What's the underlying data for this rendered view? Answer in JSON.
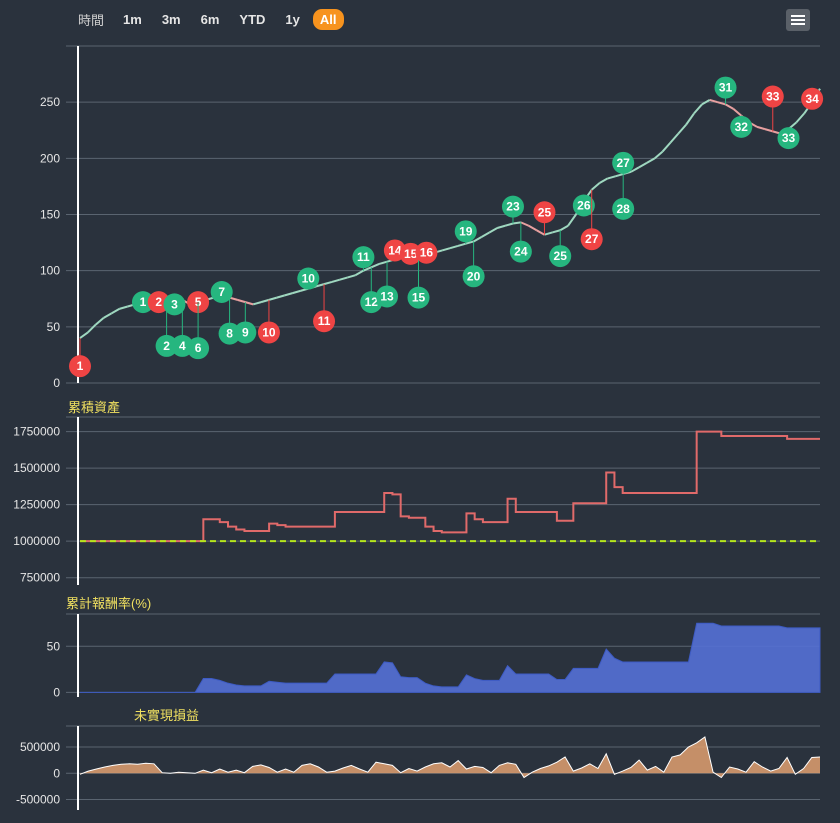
{
  "range_selector": {
    "label": "時間",
    "buttons": [
      "1m",
      "3m",
      "6m",
      "YTD",
      "1y",
      "All"
    ],
    "selected": "All"
  },
  "menu_icon": "hamburger-menu-icon",
  "colors": {
    "background": "#2a323d",
    "grid": "#5a6470",
    "buy_flag": "#26b67f",
    "sell_flag": "#ef4444",
    "equity_line": "#e06a6a",
    "baseline": "#b5e61d",
    "return_area": "#5470d6",
    "unrealized_area": "#e0a070",
    "pane_title": "#f0e060"
  },
  "chart_data": [
    {
      "type": "line",
      "pane": "price",
      "ylim": [
        0,
        300
      ],
      "yticks": [
        0,
        50,
        100,
        150,
        200,
        250
      ],
      "grid": true,
      "series": [
        {
          "values": [
            40,
            45,
            52,
            58,
            62,
            66,
            68,
            70,
            71,
            72,
            70,
            72,
            73,
            74,
            70,
            72,
            74,
            76,
            78,
            76,
            74,
            72,
            70,
            72,
            74,
            76,
            78,
            80,
            82,
            84,
            86,
            88,
            90,
            92,
            94,
            96,
            100,
            103,
            106,
            108,
            110,
            112,
            113,
            114,
            115,
            116,
            118,
            120,
            122,
            124,
            126,
            130,
            134,
            138,
            140,
            142,
            143,
            140,
            136,
            132,
            134,
            136,
            140,
            150,
            162,
            172,
            178,
            182,
            184,
            186,
            188,
            192,
            196,
            200,
            206,
            214,
            222,
            230,
            240,
            248,
            252,
            250,
            248,
            244,
            238,
            232,
            228,
            226,
            224,
            222,
            226,
            232,
            240,
            250,
            262
          ]
        }
      ]
    },
    {
      "type": "line",
      "pane": "cumulative-assets",
      "title": "累積資產",
      "ylim": [
        700000,
        1850000
      ],
      "yticks": [
        750000,
        1000000,
        1250000,
        1500000,
        1750000
      ],
      "baseline": 1000000,
      "series": [
        {
          "values": [
            1000000,
            1000000,
            1000000,
            1000000,
            1000000,
            1000000,
            1000000,
            1000000,
            1000000,
            1000000,
            1000000,
            1000000,
            1000000,
            1000000,
            1000000,
            1150000,
            1150000,
            1130000,
            1100000,
            1080000,
            1070000,
            1070000,
            1070000,
            1120000,
            1110000,
            1100000,
            1100000,
            1100000,
            1100000,
            1100000,
            1100000,
            1200000,
            1200000,
            1200000,
            1200000,
            1200000,
            1200000,
            1330000,
            1320000,
            1170000,
            1160000,
            1160000,
            1100000,
            1070000,
            1060000,
            1060000,
            1060000,
            1190000,
            1150000,
            1130000,
            1130000,
            1130000,
            1290000,
            1200000,
            1200000,
            1200000,
            1200000,
            1200000,
            1140000,
            1140000,
            1260000,
            1260000,
            1260000,
            1260000,
            1470000,
            1370000,
            1330000,
            1330000,
            1330000,
            1330000,
            1330000,
            1330000,
            1330000,
            1330000,
            1330000,
            1750000,
            1750000,
            1750000,
            1720000,
            1720000,
            1720000,
            1720000,
            1720000,
            1720000,
            1720000,
            1720000,
            1700000,
            1700000,
            1700000,
            1700000,
            1700000
          ]
        }
      ]
    },
    {
      "type": "area",
      "pane": "cumulative-return",
      "title": "累計報酬率(%)",
      "ylim": [
        -5,
        85
      ],
      "yticks": [
        0,
        50
      ],
      "series": [
        {
          "values": [
            0,
            0,
            0,
            0,
            0,
            0,
            0,
            0,
            0,
            0,
            0,
            0,
            0,
            0,
            0,
            15,
            15,
            13,
            10,
            8,
            7,
            7,
            7,
            12,
            11,
            10,
            10,
            10,
            10,
            10,
            10,
            20,
            20,
            20,
            20,
            20,
            20,
            33,
            32,
            17,
            16,
            16,
            10,
            7,
            6,
            6,
            6,
            19,
            15,
            13,
            13,
            13,
            29,
            20,
            20,
            20,
            20,
            20,
            14,
            14,
            26,
            26,
            26,
            26,
            47,
            37,
            33,
            33,
            33,
            33,
            33,
            33,
            33,
            33,
            33,
            75,
            75,
            75,
            72,
            72,
            72,
            72,
            72,
            72,
            72,
            72,
            70,
            70,
            70,
            70,
            70
          ]
        }
      ]
    },
    {
      "type": "area",
      "pane": "unrealized-pnl",
      "title": "未實現損益",
      "ylim": [
        -700000,
        900000
      ],
      "yticks": [
        -500000,
        0,
        500000
      ],
      "series": [
        {
          "values": [
            -20000,
            40000,
            80000,
            120000,
            150000,
            170000,
            180000,
            170000,
            190000,
            180000,
            10000,
            0,
            20000,
            10000,
            0,
            60000,
            10000,
            80000,
            20000,
            60000,
            10000,
            130000,
            160000,
            110000,
            20000,
            80000,
            20000,
            150000,
            180000,
            120000,
            20000,
            40000,
            100000,
            150000,
            80000,
            20000,
            210000,
            180000,
            150000,
            10000,
            90000,
            40000,
            120000,
            180000,
            200000,
            120000,
            240000,
            80000,
            130000,
            110000,
            10000,
            150000,
            200000,
            170000,
            -80000,
            20000,
            90000,
            140000,
            210000,
            310000,
            40000,
            100000,
            180000,
            90000,
            370000,
            -20000,
            40000,
            110000,
            250000,
            60000,
            130000,
            20000,
            310000,
            350000,
            500000,
            580000,
            690000,
            20000,
            -80000,
            120000,
            80000,
            20000,
            220000,
            120000,
            40000,
            90000,
            300000,
            -20000,
            90000,
            300000,
            310000
          ]
        }
      ]
    }
  ],
  "trade_flags": [
    {
      "label": "1",
      "side": "sell",
      "i": 0,
      "v": 15
    },
    {
      "label": "1",
      "side": "buy",
      "i": 8,
      "v": 72
    },
    {
      "label": "2",
      "side": "sell",
      "i": 10,
      "v": 72
    },
    {
      "label": "3",
      "side": "buy",
      "i": 12,
      "v": 70
    },
    {
      "label": "5",
      "side": "sell",
      "i": 15,
      "v": 72
    },
    {
      "label": "2",
      "side": "buy",
      "i": 11,
      "v": 33
    },
    {
      "label": "4",
      "side": "buy",
      "i": 13,
      "v": 33
    },
    {
      "label": "6",
      "side": "buy",
      "i": 15,
      "v": 31
    },
    {
      "label": "7",
      "side": "buy",
      "i": 18,
      "v": 81
    },
    {
      "label": "8",
      "side": "buy",
      "i": 19,
      "v": 44
    },
    {
      "label": "9",
      "side": "buy",
      "i": 21,
      "v": 45
    },
    {
      "label": "10",
      "side": "sell",
      "i": 24,
      "v": 45
    },
    {
      "label": "10",
      "side": "buy",
      "i": 29,
      "v": 93
    },
    {
      "label": "11",
      "side": "sell",
      "i": 31,
      "v": 55
    },
    {
      "label": "11",
      "side": "buy",
      "i": 36,
      "v": 112
    },
    {
      "label": "12",
      "side": "buy",
      "i": 37,
      "v": 72
    },
    {
      "label": "13",
      "side": "buy",
      "i": 39,
      "v": 77
    },
    {
      "label": "14",
      "side": "sell",
      "i": 40,
      "v": 118
    },
    {
      "label": "15",
      "side": "sell",
      "i": 42,
      "v": 115
    },
    {
      "label": "15",
      "side": "buy",
      "i": 43,
      "v": 76
    },
    {
      "label": "16",
      "side": "sell",
      "i": 44,
      "v": 116
    },
    {
      "label": "19",
      "side": "buy",
      "i": 49,
      "v": 135
    },
    {
      "label": "20",
      "side": "buy",
      "i": 50,
      "v": 95
    },
    {
      "label": "23",
      "side": "buy",
      "i": 55,
      "v": 157
    },
    {
      "label": "24",
      "side": "buy",
      "i": 56,
      "v": 117
    },
    {
      "label": "25",
      "side": "sell",
      "i": 59,
      "v": 152
    },
    {
      "label": "25",
      "side": "buy",
      "i": 61,
      "v": 113
    },
    {
      "label": "26",
      "side": "buy",
      "i": 64,
      "v": 158
    },
    {
      "label": "27",
      "side": "sell",
      "i": 65,
      "v": 128
    },
    {
      "label": "27",
      "side": "buy",
      "i": 69,
      "v": 196
    },
    {
      "label": "28",
      "side": "buy",
      "i": 69,
      "v": 155
    },
    {
      "label": "31",
      "side": "buy",
      "i": 82,
      "v": 263
    },
    {
      "label": "32",
      "side": "buy",
      "i": 84,
      "v": 228
    },
    {
      "label": "33",
      "side": "sell",
      "i": 88,
      "v": 255
    },
    {
      "label": "33",
      "side": "buy",
      "i": 90,
      "v": 218
    },
    {
      "label": "34",
      "side": "sell",
      "i": 93,
      "v": 253
    }
  ]
}
